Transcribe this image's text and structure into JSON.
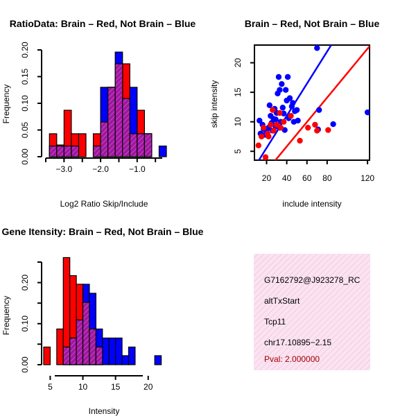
{
  "colors": {
    "red": "#ff0000",
    "blue": "#0000ff",
    "purple": "#9a1a9a",
    "stripe": "#d83ad8",
    "info_bg": "#fbe3f1",
    "info_hatch": "#e8a8cc",
    "pval": "#a00000"
  },
  "chart_data": [
    {
      "type": "bar",
      "title": "RatioData: Brain – Red, Not Brain – Blue",
      "xlabel": "Log2 Ratio Skip/Include",
      "ylabel": "Frequency",
      "xlim": [
        -3.5,
        -0.2
      ],
      "ylim": [
        0,
        0.2
      ],
      "xticks": [
        -3.0,
        -2.0,
        -1.0
      ],
      "xtick_labels": [
        "−3.0",
        "−2.0",
        "−1.0"
      ],
      "yticks": [
        0.0,
        0.05,
        0.1,
        0.15,
        0.2
      ],
      "ytick_labels": [
        "0.00",
        "0.05",
        "0.10",
        "0.15",
        "0.20"
      ],
      "bin_width": 0.2,
      "series": [
        {
          "name": "Brain",
          "color": "red",
          "bin_starts": [
            -3.4,
            -3.2,
            -3.0,
            -2.8,
            -2.6,
            -2.4,
            -2.2,
            -2.0,
            -1.8,
            -1.6,
            -1.4,
            -1.2,
            -1.0,
            -0.8
          ],
          "values": [
            0.043,
            0.022,
            0.087,
            0.043,
            0.043,
            0.0,
            0.043,
            0.065,
            0.13,
            0.174,
            0.174,
            0.043,
            0.087,
            0.043
          ]
        },
        {
          "name": "Not Brain",
          "color": "blue",
          "bin_starts": [
            -3.4,
            -3.2,
            -3.0,
            -2.8,
            -2.6,
            -2.4,
            -2.2,
            -2.0,
            -1.8,
            -1.6,
            -1.4,
            -1.2,
            -1.0,
            -0.8,
            -0.6,
            -0.4
          ],
          "values": [
            0.02,
            0.02,
            0.02,
            0.02,
            0.0,
            0.0,
            0.02,
            0.13,
            0.13,
            0.196,
            0.109,
            0.13,
            0.043,
            0.043,
            0.0,
            0.02
          ]
        }
      ]
    },
    {
      "type": "scatter",
      "title": "Brain – Red, Not Brain – Blue",
      "xlabel": "include intensity",
      "ylabel": "skip intensity",
      "xlim": [
        8,
        122
      ],
      "ylim": [
        3.5,
        23
      ],
      "xticks": [
        20,
        40,
        60,
        80,
        120
      ],
      "xtick_labels": [
        "20",
        "40",
        "60",
        "80",
        "120"
      ],
      "yticks": [
        5,
        10,
        15,
        20
      ],
      "ytick_labels": [
        "5",
        "10",
        "15",
        "20"
      ],
      "series": [
        {
          "name": "Brain",
          "color": "red",
          "points": [
            [
              12,
              6.0
            ],
            [
              15,
              7.5
            ],
            [
              17,
              9.0
            ],
            [
              19,
              4.0
            ],
            [
              21,
              8.0
            ],
            [
              22,
              7.5
            ],
            [
              24,
              9.5
            ],
            [
              26,
              12.0
            ],
            [
              27,
              8.5
            ],
            [
              30,
              9.5
            ],
            [
              33,
              11.5
            ],
            [
              34,
              9.0
            ],
            [
              37,
              10.0
            ],
            [
              44,
              11.0
            ],
            [
              53,
              6.8
            ],
            [
              61,
              9.0
            ],
            [
              68,
              9.5
            ],
            [
              70,
              8.5
            ],
            [
              81,
              8.6
            ]
          ],
          "fit_line": [
            [
              8,
              -0.8
            ],
            [
              122,
              22.8
            ]
          ]
        },
        {
          "name": "Not Brain",
          "color": "blue",
          "points": [
            [
              13,
              10.2
            ],
            [
              14,
              8.0
            ],
            [
              16,
              9.5
            ],
            [
              17,
              8.8
            ],
            [
              18,
              7.8
            ],
            [
              20,
              8.5
            ],
            [
              22,
              9.0
            ],
            [
              23,
              12.8
            ],
            [
              24,
              11.0
            ],
            [
              25,
              9.8
            ],
            [
              26,
              8.5
            ],
            [
              27,
              10.5
            ],
            [
              28,
              12.2
            ],
            [
              29,
              9.2
            ],
            [
              30,
              11.5
            ],
            [
              31,
              14.8
            ],
            [
              32,
              17.6
            ],
            [
              33,
              15.4
            ],
            [
              34,
              10.0
            ],
            [
              35,
              16.4
            ],
            [
              36,
              12.4
            ],
            [
              37,
              11.4
            ],
            [
              38,
              8.6
            ],
            [
              39,
              15.4
            ],
            [
              40,
              13.6
            ],
            [
              41,
              17.6
            ],
            [
              42,
              10.6
            ],
            [
              43,
              14.0
            ],
            [
              44,
              11.0
            ],
            [
              45,
              12.6
            ],
            [
              46,
              13.2
            ],
            [
              47,
              10.0
            ],
            [
              48,
              11.8
            ],
            [
              50,
              12.0
            ],
            [
              51,
              10.2
            ],
            [
              70,
              22.5
            ],
            [
              71,
              8.7
            ],
            [
              72,
              12.0
            ],
            [
              86,
              9.6
            ],
            [
              120,
              11.6
            ],
            [
              33,
              9.0
            ],
            [
              29,
              10.4
            ]
          ],
          "fit_line": [
            [
              8,
              2.3
            ],
            [
              84,
              23.0
            ]
          ]
        }
      ]
    },
    {
      "type": "bar",
      "title": "Gene Itensity: Brain – Red, Not Brain – Blue",
      "xlabel": "Intensity",
      "ylabel": "Frequency",
      "xlim": [
        4,
        23
      ],
      "ylim": [
        0,
        0.25
      ],
      "xticks": [
        5,
        10,
        15,
        20
      ],
      "xtick_labels": [
        "5",
        "10",
        "15",
        "20"
      ],
      "yticks": [
        0.0,
        0.1,
        0.2
      ],
      "ytick_labels": [
        "0.00",
        "0.10",
        "0.20"
      ],
      "minor_yticks": [
        0.05,
        0.15,
        0.25
      ],
      "bin_width": 1,
      "series": [
        {
          "name": "Brain",
          "color": "red",
          "bin_starts": [
            4,
            5,
            6,
            7,
            8,
            9,
            10,
            11,
            12,
            13
          ],
          "values": [
            0.043,
            0.0,
            0.087,
            0.261,
            0.217,
            0.196,
            0.152,
            0.087,
            0.043,
            0.0
          ]
        },
        {
          "name": "Not Brain",
          "color": "blue",
          "bin_starts": [
            5,
            6,
            7,
            8,
            9,
            10,
            11,
            12,
            13,
            14,
            15,
            16,
            17,
            18,
            19,
            20,
            21
          ],
          "values": [
            0.0,
            0.0,
            0.043,
            0.065,
            0.109,
            0.196,
            0.174,
            0.087,
            0.065,
            0.065,
            0.065,
            0.022,
            0.043,
            0.0,
            0.0,
            0.0,
            0.022
          ]
        }
      ]
    }
  ],
  "info": {
    "id": "G7162792@J923278_RC",
    "event": "altTxStart",
    "gene": "Tcp11",
    "location": "chr17.10895−2.15",
    "pval": "Pval: 2.000000"
  }
}
